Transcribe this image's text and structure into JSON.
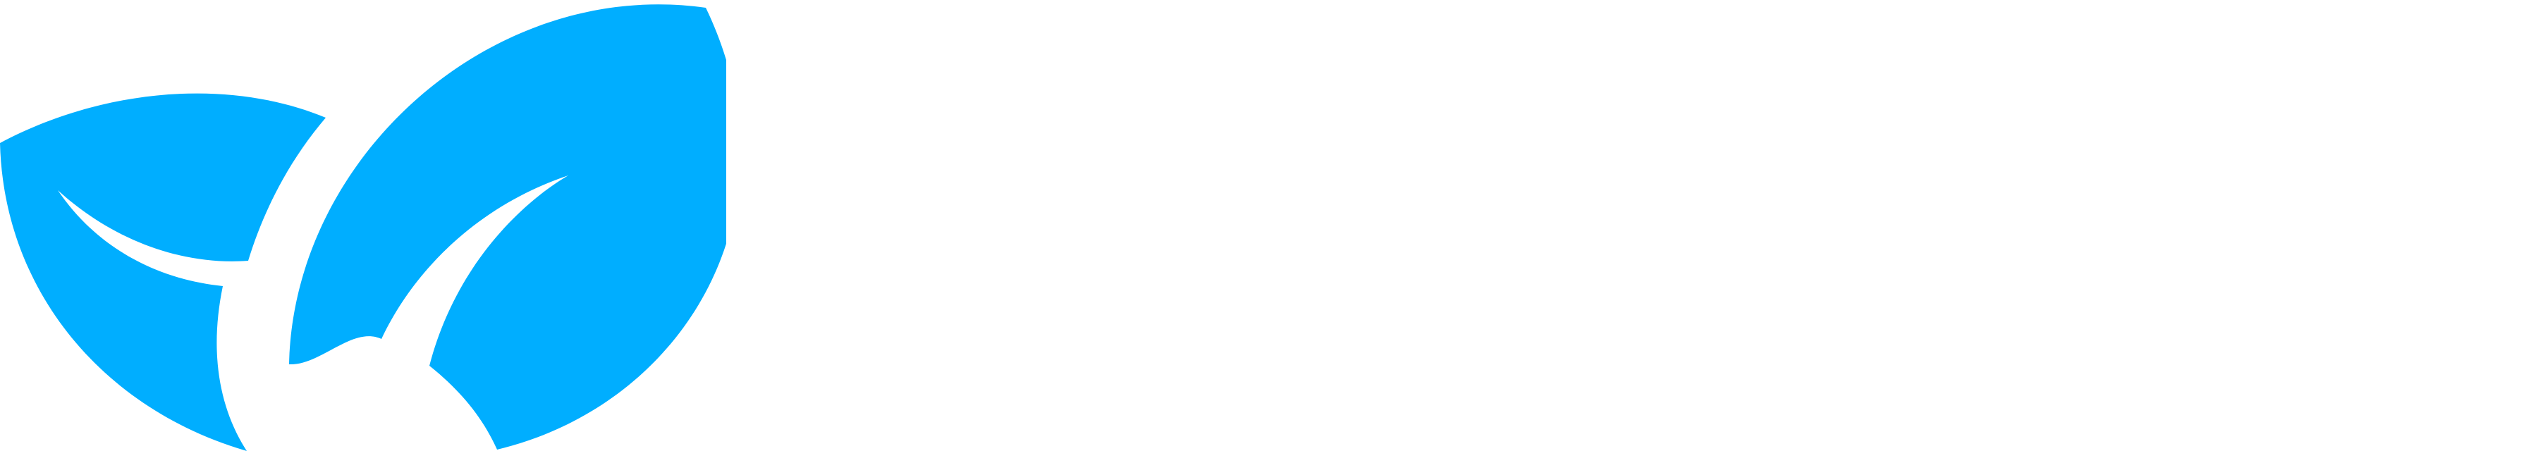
{
  "logo": {
    "icon": "leaf-sprout-logo-icon",
    "accent_color": "#00AEFF",
    "background_color": "#FFFFFF"
  }
}
